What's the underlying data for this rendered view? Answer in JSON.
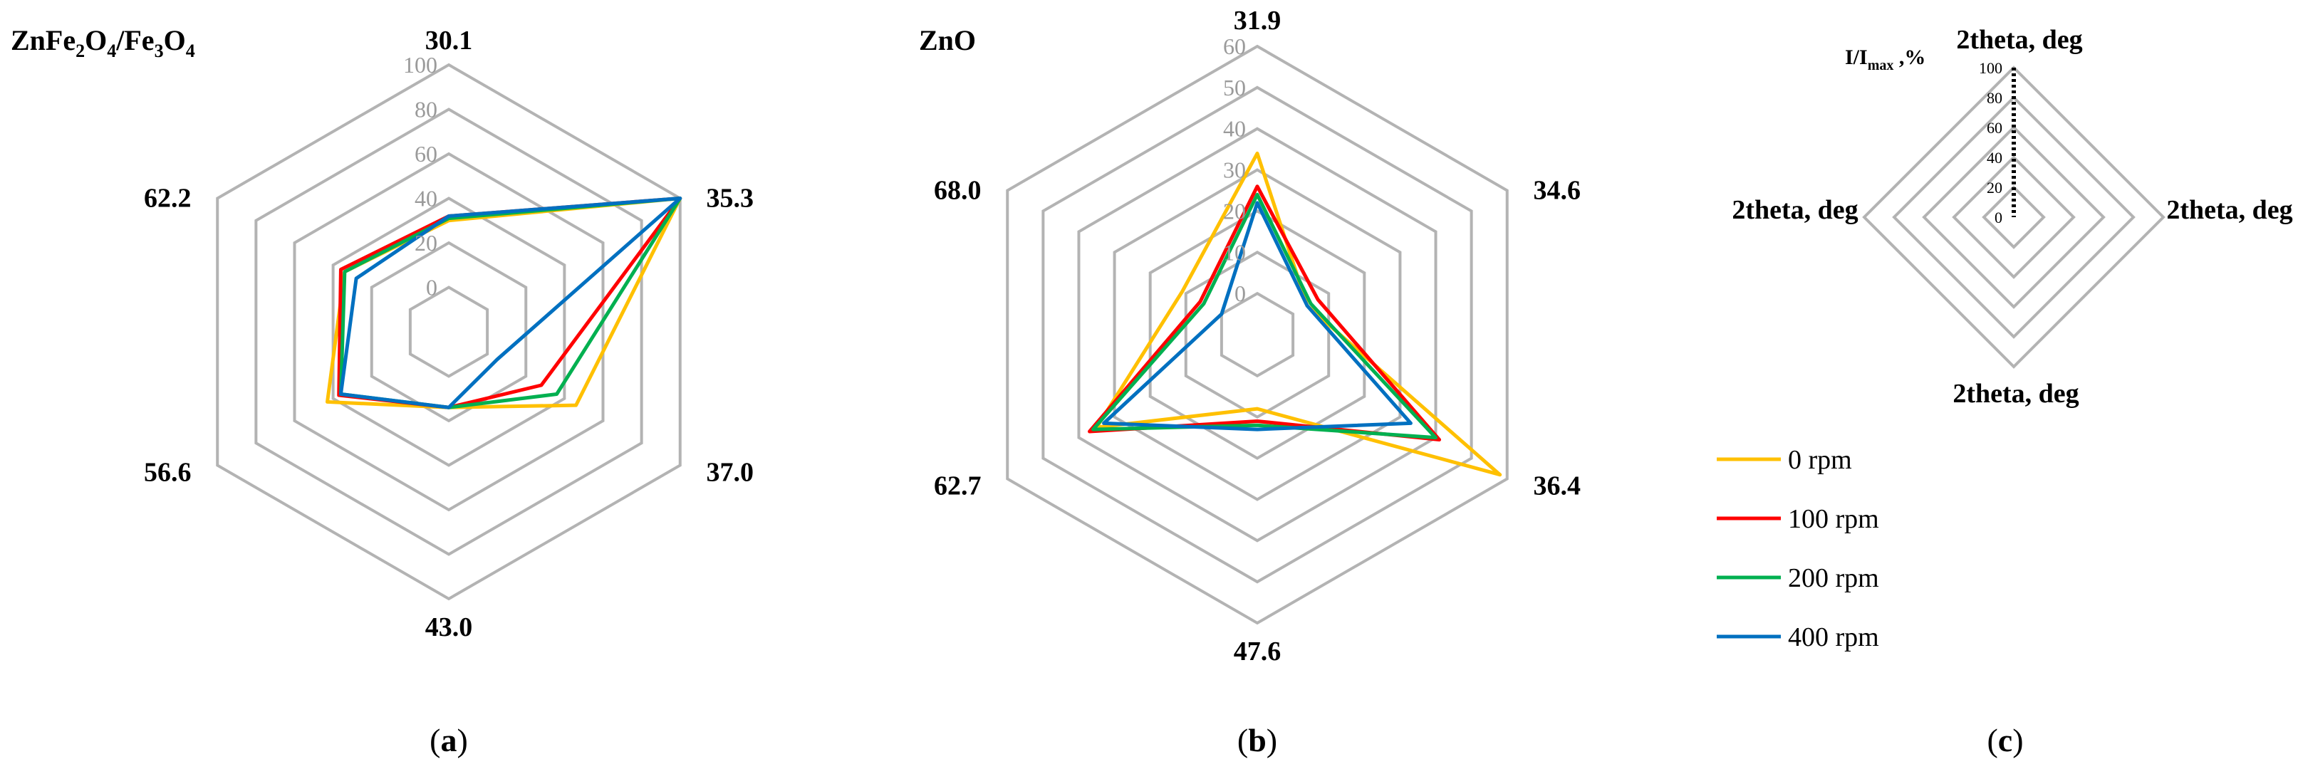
{
  "colors": {
    "grid": "#b3b3b3",
    "series": [
      "#ffc000",
      "#ff0000",
      "#00b050",
      "#0070c0"
    ]
  },
  "legend": [
    "0 rpm",
    "100 rpm",
    "200 rpm",
    "400 rpm"
  ],
  "chart_data": [
    {
      "type": "radar",
      "panel_label": "a",
      "title": "ZnFe2O4/Fe3O4",
      "title_parts": {
        "zn": "ZnFe",
        "s1": "2",
        "o1": "O",
        "s2": "4",
        "slash": "/Fe",
        "s3": "3",
        "o2": "O",
        "s4": "4"
      },
      "categories": [
        "30.1",
        "35.3",
        "37.0",
        "43.0",
        "56.6",
        "62.2"
      ],
      "r_range": [
        -20,
        100
      ],
      "ticks": [
        "0",
        "20",
        "40",
        "60",
        "80",
        "100"
      ],
      "tick_values": [
        0,
        20,
        40,
        60,
        80,
        100
      ],
      "series": [
        {
          "name": "0 rpm",
          "values": [
            30,
            100,
            46,
            14,
            43,
            34
          ]
        },
        {
          "name": "100 rpm",
          "values": [
            32,
            100,
            28,
            14,
            37,
            36
          ]
        },
        {
          "name": "200 rpm",
          "values": [
            31,
            100,
            36,
            14,
            36,
            34
          ]
        },
        {
          "name": "400 rpm",
          "values": [
            32,
            100,
            5,
            14,
            36,
            28
          ]
        }
      ]
    },
    {
      "type": "radar",
      "panel_label": "b",
      "title": "ZnO",
      "categories": [
        "31.9",
        "34.6",
        "36.4",
        "47.6",
        "62.7",
        "68.0"
      ],
      "r_range": [
        -10,
        60
      ],
      "ticks": [
        "0",
        "10",
        "20",
        "30",
        "40",
        "50",
        "60"
      ],
      "tick_values": [
        0,
        10,
        20,
        30,
        40,
        50,
        60
      ],
      "series": [
        {
          "name": "0 rpm",
          "values": [
            34,
            4,
            58,
            8,
            35,
            11
          ]
        },
        {
          "name": "100 rpm",
          "values": [
            26,
            7,
            41,
            11,
            37,
            6
          ]
        },
        {
          "name": "200 rpm",
          "values": [
            24,
            5,
            40,
            12,
            36,
            5
          ]
        },
        {
          "name": "400 rpm",
          "values": [
            22,
            4,
            33,
            13,
            33,
            0
          ]
        }
      ]
    }
  ],
  "panel_c": {
    "panel_label": "c",
    "axis_title": {
      "i": "I/I",
      "sub": "max",
      "rest": " ,%"
    },
    "axis_labels": [
      "2theta, deg",
      "2theta, deg",
      "2theta, deg",
      "2theta, deg"
    ],
    "ticks": [
      "0",
      "20",
      "40",
      "60",
      "80",
      "100"
    ]
  }
}
